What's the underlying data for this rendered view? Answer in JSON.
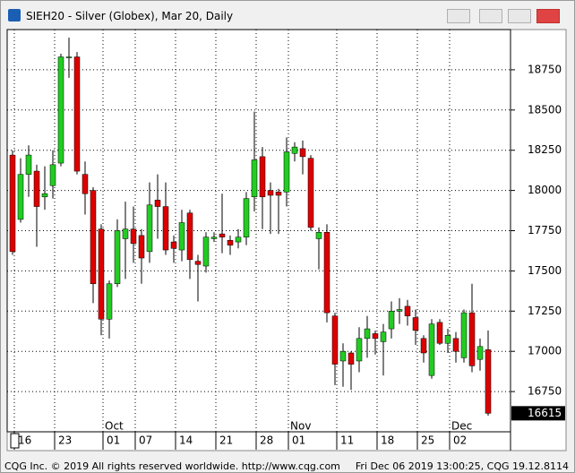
{
  "chart_data": {
    "type": "candlestick",
    "title": "SIEH20 - Silver (Globex), Mar 20, Daily",
    "categories": [
      "16",
      null,
      null,
      null,
      null,
      "23",
      null,
      null,
      null,
      null,
      null,
      "01",
      null,
      null,
      null,
      "07",
      null,
      null,
      null,
      null,
      "14",
      null,
      null,
      null,
      null,
      "21",
      null,
      null,
      null,
      null,
      "28",
      null,
      null,
      null,
      "01",
      null,
      null,
      null,
      null,
      null,
      "11",
      null,
      null,
      null,
      null,
      "18",
      null,
      null,
      null,
      null,
      "25",
      null,
      null,
      null,
      "02",
      null,
      null,
      null,
      null,
      null
    ],
    "month_labels": [
      "Oct",
      "Nov",
      "Dec"
    ],
    "open": [
      18220,
      17820,
      18100,
      18120,
      17960,
      18030,
      18170,
      18830,
      18830,
      18100,
      18000,
      17760,
      17200,
      17420,
      17700,
      17760,
      17720,
      17620,
      17940,
      17900,
      17680,
      17630,
      17860,
      17560,
      17530,
      17700,
      17730,
      17690,
      17680,
      17710,
      17960,
      18210,
      18000,
      17990,
      17990,
      18230,
      18260,
      18200,
      17700,
      17740,
      17220,
      16940,
      16990,
      16940,
      17080,
      17110,
      17060,
      17140,
      17250,
      17280,
      17210,
      17080,
      16850,
      17180,
      17050,
      17080,
      16960,
      17240,
      16950,
      17010
    ],
    "high": [
      18250,
      18200,
      18280,
      18160,
      18150,
      18250,
      18850,
      18950,
      18860,
      18180,
      18020,
      17790,
      17440,
      17820,
      17930,
      17900,
      17760,
      18050,
      18100,
      18050,
      17720,
      17880,
      17880,
      17600,
      17740,
      17740,
      17980,
      17720,
      17760,
      17990,
      18490,
      18270,
      18050,
      18010,
      18330,
      18300,
      18310,
      18220,
      17770,
      17790,
      17240,
      17050,
      17000,
      17150,
      17220,
      17130,
      17170,
      17310,
      17330,
      17320,
      17260,
      17100,
      17200,
      17200,
      17140,
      17120,
      17260,
      17420,
      17080,
      17130
    ],
    "low": [
      17600,
      17800,
      17960,
      17650,
      17880,
      17950,
      18150,
      18700,
      18100,
      17850,
      17300,
      17100,
      17080,
      17400,
      17450,
      17550,
      17420,
      17550,
      17700,
      17600,
      17550,
      17560,
      17450,
      17310,
      17490,
      17680,
      17610,
      17600,
      17640,
      17660,
      17870,
      17760,
      17730,
      17730,
      17900,
      18180,
      18100,
      17750,
      17510,
      17180,
      16790,
      16780,
      16760,
      16870,
      16960,
      16980,
      16850,
      17080,
      17170,
      17160,
      17040,
      16930,
      16830,
      17040,
      16990,
      16930,
      16930,
      16870,
      16880,
      16600
    ],
    "close": [
      17620,
      18100,
      18220,
      17900,
      17980,
      18160,
      18830,
      18830,
      18120,
      17980,
      17420,
      17200,
      17420,
      17750,
      17760,
      17670,
      17580,
      17910,
      17900,
      17630,
      17640,
      17800,
      17570,
      17540,
      17710,
      17710,
      17710,
      17660,
      17710,
      17950,
      18190,
      17960,
      17970,
      17970,
      18240,
      18270,
      18210,
      17770,
      17740,
      17240,
      16920,
      17000,
      16920,
      17080,
      17140,
      17080,
      17120,
      17250,
      17260,
      17220,
      17130,
      16990,
      17170,
      17050,
      17100,
      17000,
      17240,
      16910,
      17030,
      16615
    ],
    "up_color": "#22cc22",
    "down_color": "#dd0000",
    "last_price": 16615,
    "ylim": [
      16500,
      19000
    ],
    "yticks": [
      16750,
      17000,
      17250,
      17500,
      17750,
      18000,
      18250,
      18500,
      18750
    ],
    "grid": true
  },
  "footer": {
    "copyright": "CQG Inc. © 2019 All rights reserved worldwide. http://www.cqg.com",
    "timestamp": "Fri Dec 06 2019 13:00:25, CQG 19.12.8114"
  }
}
